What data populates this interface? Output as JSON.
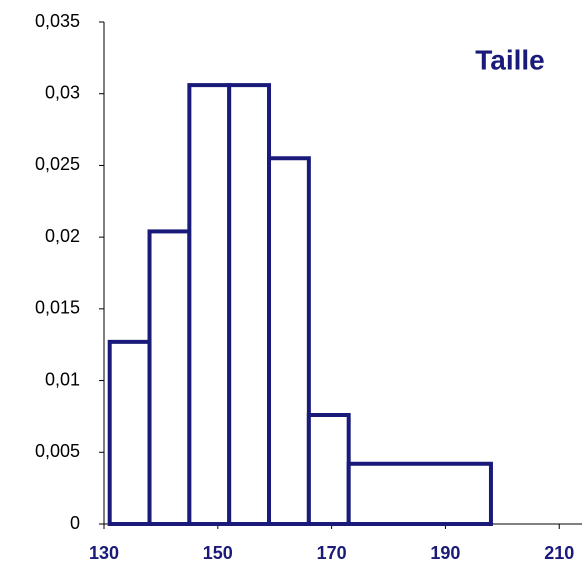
{
  "chart_data": {
    "type": "histogram",
    "title": "Taille",
    "bins": [
      131,
      138,
      145,
      152,
      159,
      166,
      173,
      198
    ],
    "values": [
      0.0127,
      0.0204,
      0.0306,
      0.0306,
      0.0255,
      0.0076,
      0.0042
    ],
    "color": "#1a1a7a",
    "xlim": [
      130,
      214
    ],
    "xticks": [
      130,
      150,
      170,
      190,
      210
    ],
    "ylim": [
      0,
      0.035
    ],
    "yticks": [
      0,
      {
        "value": 0.005,
        "label": "0,005"
      },
      {
        "value": 0.01,
        "label": "0,01"
      },
      {
        "value": 0.015,
        "label": "0,015"
      },
      {
        "value": 0.02,
        "label": "0,02"
      },
      {
        "value": 0.025,
        "label": "0,025"
      },
      {
        "value": 0.03,
        "label": "0,03"
      },
      {
        "value": 0.035,
        "label": "0,035"
      }
    ],
    "grid": false
  }
}
